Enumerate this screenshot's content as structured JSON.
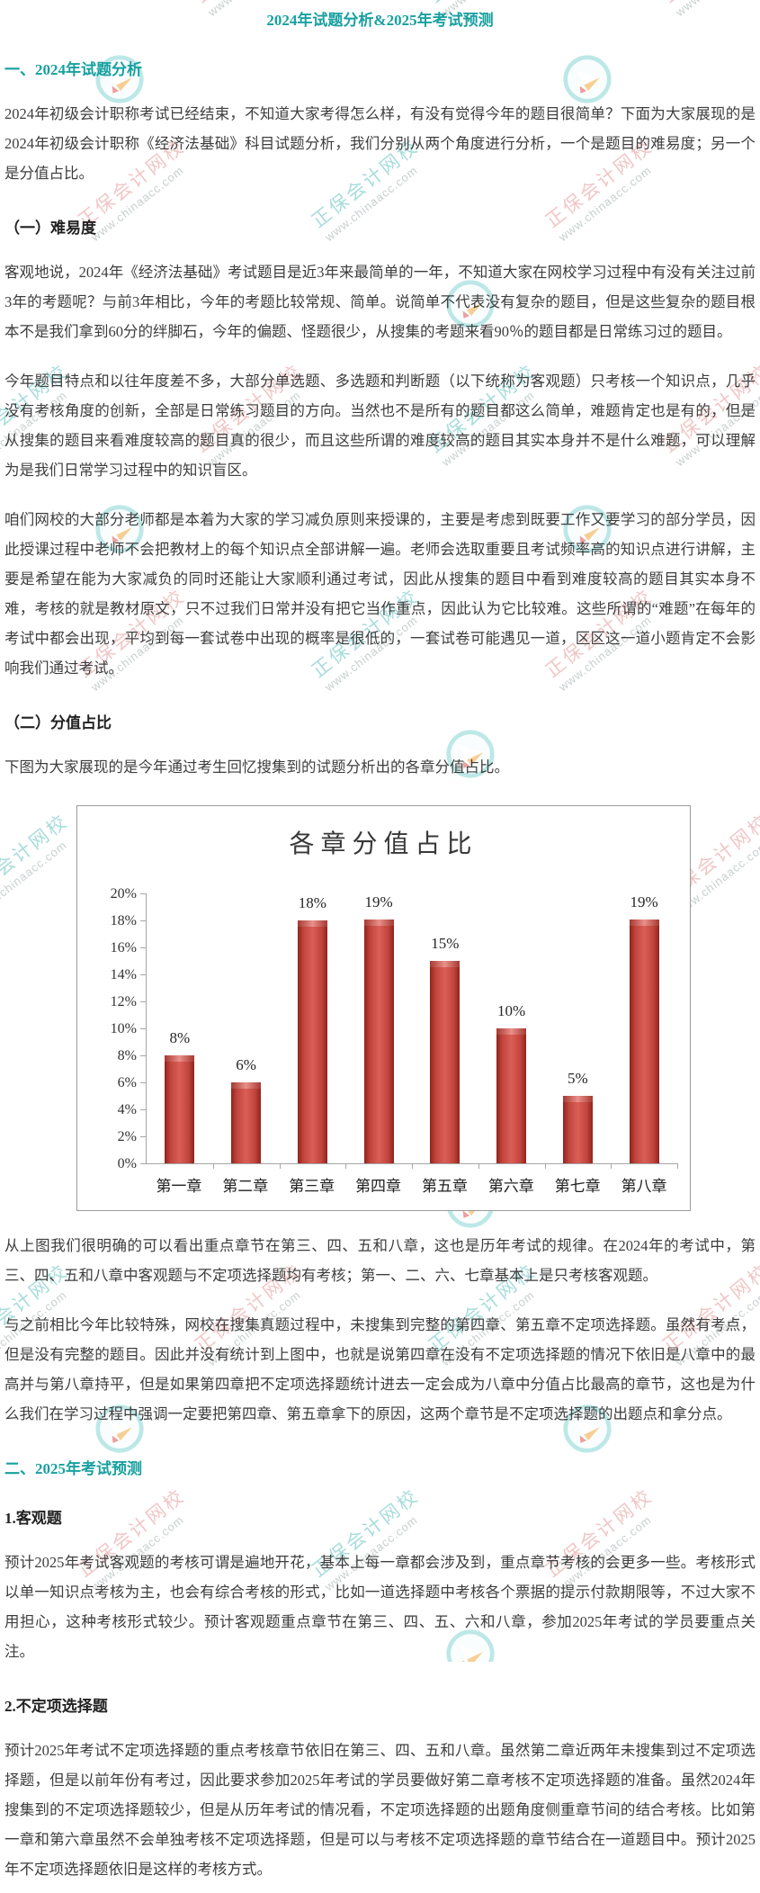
{
  "page_title": "2024年试题分析&2025年考试预测",
  "watermark": {
    "brand": "正保会计网校",
    "url": "www.chinaacc.com"
  },
  "colors": {
    "heading_teal": "#18a0a0",
    "body_text": "#3d3d3d",
    "bar_red": "#c2453d",
    "axis_gray": "#a6a6a6"
  },
  "blocks": [
    {
      "type": "h2",
      "text": "一、2024年试题分析"
    },
    {
      "type": "p",
      "text": "2024年初级会计职称考试已经结束，不知道大家考得怎么样，有没有觉得今年的题目很简单？下面为大家展现的是2024年初级会计职称《经济法基础》科目试题分析，我们分别从两个角度进行分析，一个是题目的难易度；另一个是分值占比。"
    },
    {
      "type": "h3",
      "text": "（一）难易度"
    },
    {
      "type": "p",
      "text": "客观地说，2024年《经济法基础》考试题目是近3年来最简单的一年，不知道大家在网校学习过程中有没有关注过前3年的考题呢？与前3年相比，今年的考题比较常规、简单。说简单不代表没有复杂的题目，但是这些复杂的题目根本不是我们拿到60分的绊脚石，今年的偏题、怪题很少，从搜集的考题来看90％的题目都是日常练习过的题目。"
    },
    {
      "type": "p",
      "text": "今年题目特点和以往年度差不多，大部分单选题、多选题和判断题（以下统称为客观题）只考核一个知识点，几乎没有考核角度的创新，全部是日常练习题目的方向。当然也不是所有的题目都这么简单，难题肯定也是有的，但是从搜集的题目来看难度较高的题目真的很少，而且这些所谓的难度较高的题目其实本身并不是什么难题，可以理解为是我们日常学习过程中的知识盲区。"
    },
    {
      "type": "p",
      "text": "咱们网校的大部分老师都是本着为大家的学习减负原则来授课的，主要是考虑到既要工作又要学习的部分学员，因此授课过程中老师不会把教材上的每个知识点全部讲解一遍。老师会选取重要且考试频率高的知识点进行讲解，主要是希望在能为大家减负的同时还能让大家顺利通过考试，因此从搜集的题目中看到难度较高的题目其实本身不难，考核的就是教材原文，只不过我们日常并没有把它当作重点，因此认为它比较难。这些所谓的“难题”在每年的考试中都会出现，平均到每一套试卷中出现的概率是很低的，一套试卷可能遇见一道，区区这一道小题肯定不会影响我们通过考试。"
    },
    {
      "type": "h3",
      "text": "（二）分值占比"
    },
    {
      "type": "p",
      "text": "下图为大家展现的是今年通过考生回忆搜集到的试题分析出的各章分值占比。"
    },
    {
      "type": "chart"
    },
    {
      "type": "p",
      "text": "从上图我们很明确的可以看出重点章节在第三、四、五和八章，这也是历年考试的规律。在2024年的考试中，第三、四、五和八章中客观题与不定项选择题均有考核；第一、二、六、七章基本上是只考核客观题。"
    },
    {
      "type": "p",
      "text": "与之前相比今年比较特殊，网校在搜集真题过程中，未搜集到完整的第四章、第五章不定项选择题。虽然有考点，但是没有完整的题目。因此并没有统计到上图中，也就是说第四章在没有不定项选择题的情况下依旧是八章中的最高并与第八章持平，但是如果第四章把不定项选择题统计进去一定会成为八章中分值占比最高的章节，这也是为什么我们在学习过程中强调一定要把第四章、第五章拿下的原因，这两个章节是不定项选择题的出题点和拿分点。"
    },
    {
      "type": "h2",
      "text": "二、2025年考试预测"
    },
    {
      "type": "h3",
      "text": "1.客观题"
    },
    {
      "type": "p",
      "text": "预计2025年考试客观题的考核可谓是遍地开花，基本上每一章都会涉及到，重点章节考核的会更多一些。考核形式以单一知识点考核为主，也会有综合考核的形式，比如一道选择题中考核各个票据的提示付款期限等，不过大家不用担心，这种考核形式较少。预计客观题重点章节在第三、四、五、六和八章，参加2025年考试的学员要重点关注。"
    },
    {
      "type": "h3",
      "text": "2.不定项选择题"
    },
    {
      "type": "p",
      "text": "预计2025年考试不定项选择题的重点考核章节依旧在第三、四、五和八章。虽然第二章近两年未搜集到过不定项选择题，但是以前年份有考过，因此要求参加2025年考试的学员要做好第二章考核不定项选择题的准备。虽然2024年搜集到的不定项选择题较少，但是从历年考试的情况看，不定项选择题的出题角度侧重章节间的结合考核。比如第一章和第六章虽然不会单独考核不定项选择题，但是可以与考核不定项选择题的章节结合在一道题目中。预计2025年不定项选择题依旧是这样的考核方式。"
    }
  ],
  "chart_data": {
    "type": "bar",
    "title": "各章分值占比",
    "categories": [
      "第一章",
      "第二章",
      "第三章",
      "第四章",
      "第五章",
      "第六章",
      "第七章",
      "第八章"
    ],
    "values": [
      8,
      6,
      18,
      19,
      15,
      10,
      5,
      19
    ],
    "value_labels": [
      "8%",
      "6%",
      "18%",
      "19%",
      "15%",
      "10%",
      "5%",
      "19%"
    ],
    "ytick_labels": [
      "0%",
      "2%",
      "4%",
      "6%",
      "8%",
      "10%",
      "12%",
      "14%",
      "16%",
      "18%",
      "20%"
    ],
    "xlabel": "",
    "ylabel": "",
    "ylim": [
      0,
      20
    ],
    "ytick_step": 2,
    "grid": false,
    "legend_position": "none",
    "bar_color": "#c2453d"
  }
}
